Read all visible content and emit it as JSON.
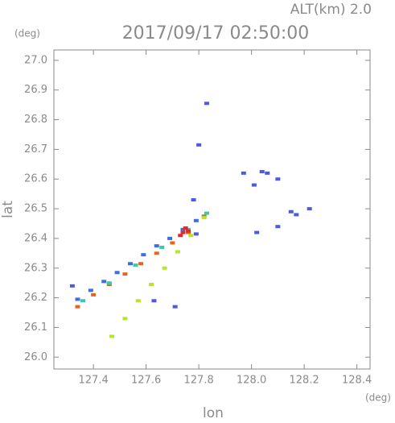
{
  "chart_data": {
    "type": "scatter",
    "title": "2017/09/17 02:50:00",
    "subtitle": "ALT(km) 2.0",
    "y_unit": "(deg)",
    "x_unit": "(deg)",
    "x_label": "lon",
    "y_label": "lat",
    "xlim": [
      127.25,
      128.45
    ],
    "ylim": [
      25.96,
      27.035
    ],
    "xticks": [
      127.4,
      127.6,
      127.8,
      {
        "value": 128.0,
        "label": "128.0"
      },
      128.2,
      128.4
    ],
    "yticks": [
      {
        "value": 26.0,
        "label": "26.0"
      },
      26.1,
      26.2,
      26.3,
      26.4,
      26.5,
      26.6,
      26.7,
      26.8,
      26.9,
      {
        "value": 27.0,
        "label": "27.0"
      }
    ],
    "series": [
      {
        "color": "#e8641e",
        "x": [
          127.34,
          127.4,
          127.46,
          127.52,
          127.58,
          127.64,
          127.7,
          127.76,
          127.82
        ],
        "y": [
          26.17,
          26.21,
          26.245,
          26.28,
          26.315,
          26.35,
          26.385,
          26.42,
          26.475
        ]
      },
      {
        "color": "#3c6ee6",
        "x": [
          127.34,
          127.39,
          127.44,
          127.49,
          127.54,
          127.59,
          127.64,
          127.69,
          127.74,
          127.79
        ],
        "y": [
          26.195,
          26.225,
          26.255,
          26.285,
          26.315,
          26.345,
          26.375,
          26.4,
          26.43,
          26.46
        ]
      },
      {
        "color": "#3cc8aa",
        "x": [
          127.36,
          127.46,
          127.56,
          127.66,
          127.76,
          127.83
        ],
        "y": [
          26.19,
          26.25,
          26.31,
          26.37,
          26.43,
          26.485
        ]
      },
      {
        "color": "#b4e628",
        "x": [
          127.47,
          127.52,
          127.57,
          127.62,
          127.67,
          127.72,
          127.77,
          127.82
        ],
        "y": [
          26.07,
          26.13,
          26.19,
          26.245,
          26.3,
          26.355,
          26.41,
          26.47
        ]
      },
      {
        "color": "#e62828",
        "x": [
          127.73,
          127.74,
          127.75,
          127.76
        ],
        "y": [
          26.41,
          26.42,
          26.435,
          26.425
        ]
      },
      {
        "color": "#4a5ae6",
        "x": [
          127.32,
          127.83,
          127.8,
          127.78,
          127.97,
          128.04,
          128.06,
          128.01,
          128.1,
          128.22,
          128.15,
          128.17,
          128.1,
          128.02,
          127.71,
          127.63,
          127.79
        ],
        "y": [
          26.24,
          26.855,
          26.715,
          26.53,
          26.62,
          26.625,
          26.62,
          26.58,
          26.6,
          26.5,
          26.49,
          26.48,
          26.44,
          26.42,
          26.17,
          26.19,
          26.415
        ]
      }
    ]
  }
}
